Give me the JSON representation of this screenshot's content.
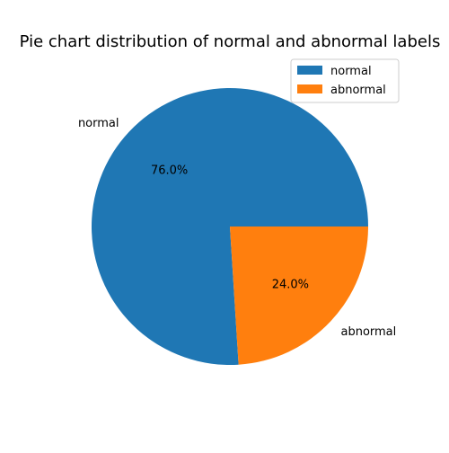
{
  "chart_data": {
    "type": "pie",
    "title": "Pie chart distribution of normal and abnormal labels",
    "categories": [
      "normal",
      "abnormal"
    ],
    "values": [
      76.0,
      24.0
    ],
    "percent_labels": [
      "76.0%",
      "24.0%"
    ],
    "colors": [
      "#1f77b4",
      "#ff7f0e"
    ],
    "legend": {
      "entries": [
        "normal",
        "abnormal"
      ],
      "position": "top-right"
    }
  }
}
